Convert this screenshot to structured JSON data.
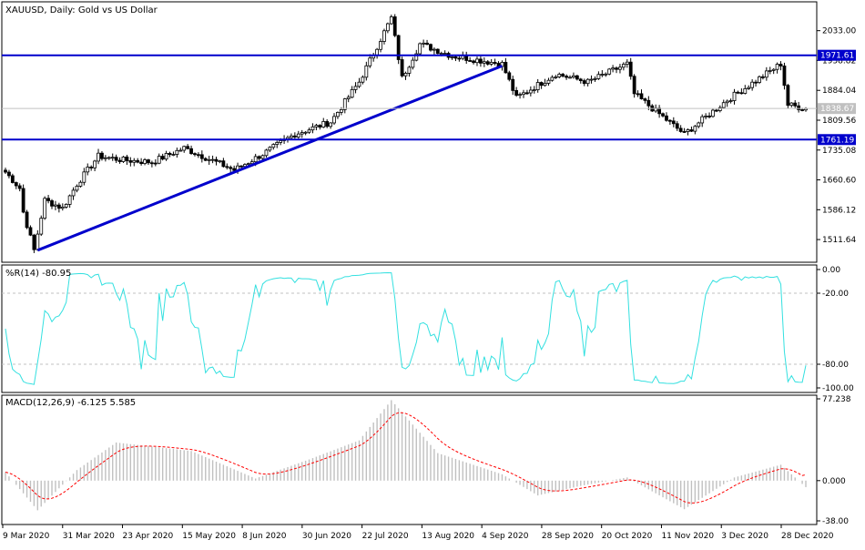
{
  "main_panel": {
    "title": "XAUUSD, Daily:  Gold vs US Dollar"
  },
  "colors": {
    "bull": "#000000",
    "bear": "#000000",
    "grid": "#c0c0c0",
    "level_line": "#0000cc",
    "level_label_bg": "#0000cc",
    "wpr_line": "#33e0e0",
    "macd_hist": "#c0c0c0",
    "macd_signal": "#ff0000",
    "current_price_label_bg": "#c0c0c0"
  },
  "chart_data": [
    {
      "type": "candlestick",
      "title": "XAUUSD, Daily:  Gold vs US Dollar",
      "ylim": [
        1455,
        2105
      ],
      "y_ticks": [
        2033.0,
        1958.82,
        1884.04,
        1809.56,
        1735.08,
        1660.6,
        1586.12,
        1511.64
      ],
      "y_tick_labels": [
        "2033.00",
        "1958.82",
        "1884.04",
        "1809.56",
        "1735.08",
        "1660.60",
        "1586.12",
        "1511.64"
      ],
      "horizontal_levels": [
        {
          "value": 1971.61,
          "label": "1971.61"
        },
        {
          "value": 1761.19,
          "label": "1761.19"
        }
      ],
      "current_price": {
        "value": 1838.67,
        "label": "1838.67"
      },
      "trendline": {
        "from": {
          "x": "2020-03-20",
          "y": 1485
        },
        "to": {
          "x": "2020-09-18",
          "y": 1945
        }
      },
      "x_tick_labels": [
        "9 Mar 2020",
        "31 Mar 2020",
        "23 Apr 2020",
        "15 May 2020",
        "8 Jun 2020",
        "30 Jun 2020",
        "22 Jul 2020",
        "13 Aug 2020",
        "4 Sep 2020",
        "28 Sep 2020",
        "20 Oct 2020",
        "11 Nov 2020",
        "3 Dec 2020",
        "28 Dec 2020"
      ],
      "close_anchors": [
        {
          "x": "2020-03-09",
          "y": 1680
        },
        {
          "x": "2020-03-13",
          "y": 1640
        },
        {
          "x": "2020-03-16",
          "y": 1580
        },
        {
          "x": "2020-03-19",
          "y": 1485
        },
        {
          "x": "2020-03-24",
          "y": 1610
        },
        {
          "x": "2020-03-31",
          "y": 1590
        },
        {
          "x": "2020-04-06",
          "y": 1650
        },
        {
          "x": "2020-04-14",
          "y": 1720
        },
        {
          "x": "2020-04-23",
          "y": 1710
        },
        {
          "x": "2020-05-05",
          "y": 1705
        },
        {
          "x": "2020-05-18",
          "y": 1740
        },
        {
          "x": "2020-06-05",
          "y": 1685
        },
        {
          "x": "2020-06-17",
          "y": 1725
        },
        {
          "x": "2020-06-30",
          "y": 1775
        },
        {
          "x": "2020-07-14",
          "y": 1805
        },
        {
          "x": "2020-07-24",
          "y": 1905
        },
        {
          "x": "2020-08-06",
          "y": 2065
        },
        {
          "x": "2020-08-11",
          "y": 1915
        },
        {
          "x": "2020-08-18",
          "y": 2000
        },
        {
          "x": "2020-08-31",
          "y": 1970
        },
        {
          "x": "2020-09-18",
          "y": 1950
        },
        {
          "x": "2020-09-24",
          "y": 1865
        },
        {
          "x": "2020-10-09",
          "y": 1925
        },
        {
          "x": "2020-10-22",
          "y": 1905
        },
        {
          "x": "2020-11-06",
          "y": 1950
        },
        {
          "x": "2020-11-10",
          "y": 1875
        },
        {
          "x": "2020-11-30",
          "y": 1775
        },
        {
          "x": "2020-12-16",
          "y": 1860
        },
        {
          "x": "2021-01-06",
          "y": 1950
        },
        {
          "x": "2021-01-08",
          "y": 1848
        },
        {
          "x": "2021-01-15",
          "y": 1838.67
        }
      ]
    },
    {
      "type": "line",
      "title": "%R(14) -80.95",
      "ylim": [
        -100,
        0
      ],
      "y_ticks": [
        0,
        -20,
        -80,
        -100
      ],
      "y_tick_labels": [
        "0.00",
        "-20.00",
        "-80.00",
        "-100.00"
      ],
      "reference_lines": [
        -20,
        -80
      ],
      "last_value": -80.95
    },
    {
      "type": "bar",
      "title": "MACD(12,26,9) -6.125 5.585",
      "ylim": [
        -38.0,
        77.238
      ],
      "y_ticks": [
        77.238,
        0.0,
        -38.0
      ],
      "y_tick_labels": [
        "77.238",
        "0.000",
        "-38.00"
      ],
      "macd_anchors": [
        {
          "x": "2020-03-09",
          "y": 8
        },
        {
          "x": "2020-03-20",
          "y": -28
        },
        {
          "x": "2020-04-06",
          "y": 10
        },
        {
          "x": "2020-04-21",
          "y": 36
        },
        {
          "x": "2020-05-20",
          "y": 28
        },
        {
          "x": "2020-06-15",
          "y": 2
        },
        {
          "x": "2020-07-06",
          "y": 20
        },
        {
          "x": "2020-07-24",
          "y": 38
        },
        {
          "x": "2020-08-06",
          "y": 76
        },
        {
          "x": "2020-08-25",
          "y": 26
        },
        {
          "x": "2020-09-18",
          "y": 6
        },
        {
          "x": "2020-10-02",
          "y": -14
        },
        {
          "x": "2020-10-20",
          "y": -5
        },
        {
          "x": "2020-11-06",
          "y": 3
        },
        {
          "x": "2020-11-30",
          "y": -27
        },
        {
          "x": "2020-12-18",
          "y": 3
        },
        {
          "x": "2021-01-06",
          "y": 15
        },
        {
          "x": "2021-01-15",
          "y": -6.125
        }
      ],
      "signal_last": 5.585
    }
  ]
}
